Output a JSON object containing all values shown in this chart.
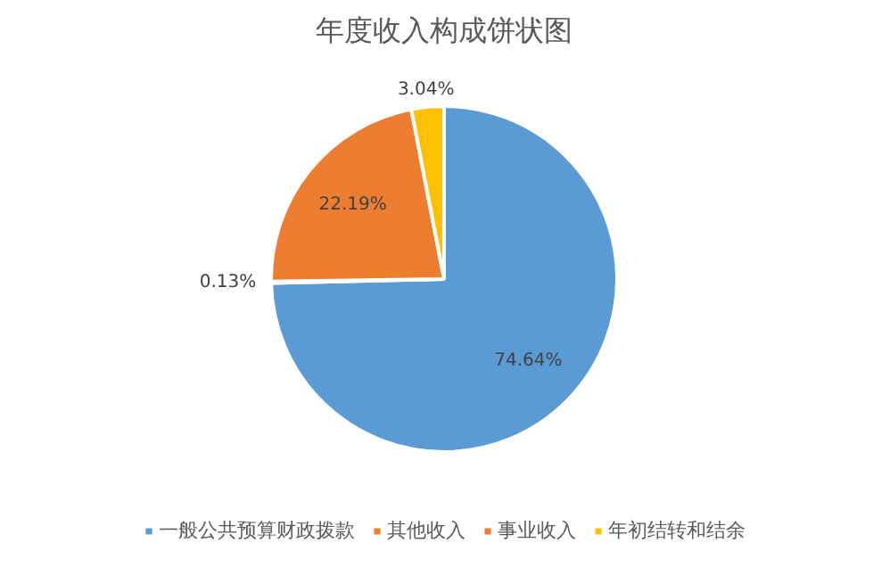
{
  "chart_data": {
    "type": "pie",
    "title": "年度收入构成饼状图",
    "categories": [
      "一般公共预算财政拨款",
      "其他收入",
      "事业收入",
      "年初结转和结余"
    ],
    "values": [
      74.64,
      0.13,
      22.19,
      3.04
    ],
    "colors": [
      "#5b9bd5",
      "#ed7d31",
      "#ed7d31",
      "#ffc000"
    ],
    "value_labels": [
      "74.64%",
      "0.13%",
      "22.19%",
      "3.04%"
    ],
    "legend": "bottom"
  }
}
